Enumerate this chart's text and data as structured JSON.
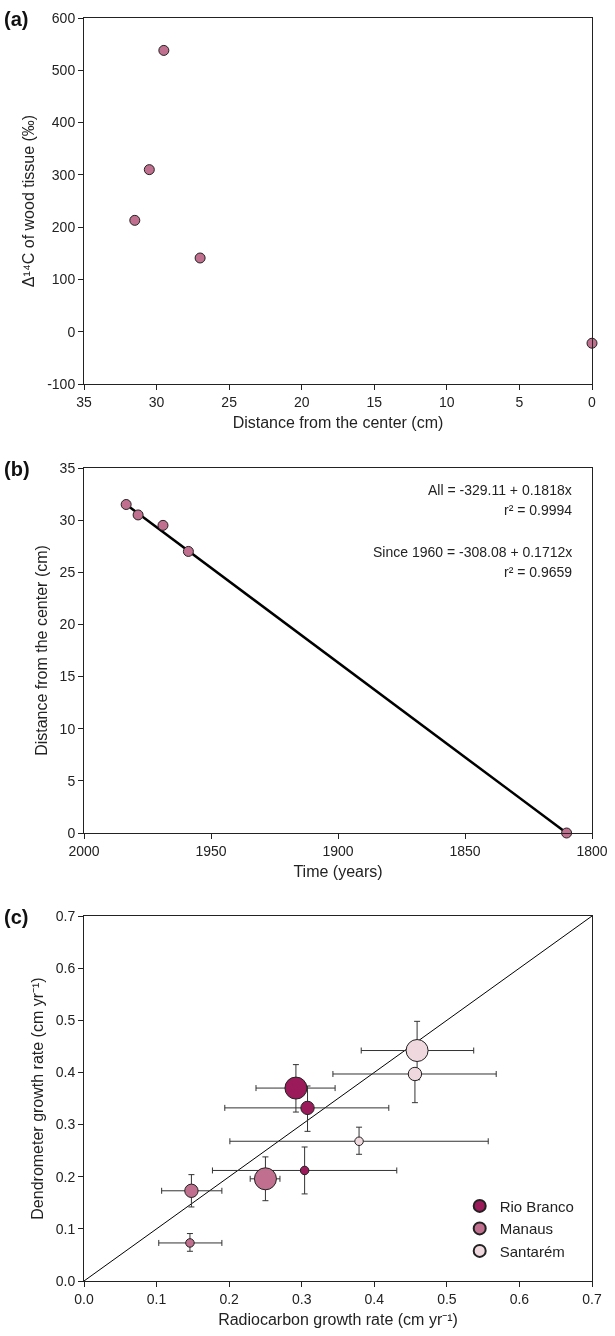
{
  "chart_data": [
    {
      "type": "scatter",
      "title": "(a)",
      "xlabel": "Distance from the center (cm)",
      "ylabel": "Δ¹⁴C of wood tissue (‰)",
      "x": [
        31.5,
        30.5,
        29.5,
        27,
        0
      ],
      "series": [
        {
          "color": "#c0708e",
          "marker": "circle",
          "values": [
            213,
            310,
            538,
            141,
            -22
          ]
        }
      ],
      "xlim": [
        35,
        0
      ],
      "xticks": [
        35,
        30,
        25,
        20,
        15,
        10,
        5,
        0
      ],
      "ylim": [
        -100,
        600
      ],
      "yticks": [
        -100,
        0,
        100,
        200,
        300,
        400,
        500,
        600
      ],
      "legend": false
    },
    {
      "type": "scatter",
      "title": "(b)",
      "xlabel": "Time (years)",
      "ylabel": "Distance from the center (cm)",
      "x": [
        1983.4,
        1978.7,
        1968.9,
        1958.9,
        1810
      ],
      "series": [
        {
          "type": "line",
          "color": "#000000",
          "marker": "none",
          "x": [
            1983.4,
            1810
          ],
          "values": [
            31.5,
            0
          ],
          "line_style": "solid"
        },
        {
          "color": "#c0708e",
          "marker": "circle",
          "values": [
            31.5,
            30.5,
            29.5,
            27,
            0
          ]
        }
      ],
      "annotations": [
        "All = -329.11 + 0.1818x",
        "r² = 0.9994",
        "Since 1960 = -308.08 + 0.1712x",
        "r² = 0.9659"
      ],
      "xlim": [
        2000,
        1800
      ],
      "xticks": [
        2000,
        1950,
        1900,
        1850,
        1800
      ],
      "ylim": [
        0,
        35
      ],
      "yticks": [
        0,
        5,
        10,
        15,
        20,
        25,
        30,
        35
      ],
      "legend": false
    },
    {
      "type": "bubble",
      "title": "(c)",
      "xlabel": "Radiocarbon growth rate (cm yr⁻¹)",
      "ylabel": "Dendrometer growth rate (cm yr⁻¹)",
      "marker": "circle",
      "series": [
        {
          "type": "line",
          "color": "#000000",
          "marker": "none",
          "x": [
            0,
            0.7
          ],
          "values": [
            0,
            0.7
          ],
          "line_style": "solid"
        },
        {
          "name": "Rio Branco",
          "color": "#9b1b5a",
          "x": [
            0.292,
            0.308,
            0.304
          ],
          "values": [
            0.37,
            0.332,
            0.212
          ],
          "sizes": [
            1,
            0.37,
            0.15
          ],
          "xerrors": [
            [
              0.237,
              0.346
            ],
            [
              0.194,
              0.42
            ],
            [
              0.177,
              0.431
            ]
          ],
          "errors": [
            [
              0.324,
              0.415
            ],
            [
              0.287,
              0.374
            ],
            [
              0.167,
              0.257
            ]
          ]
        },
        {
          "name": "Manaus",
          "color": "#c0708e",
          "x": [
            0.148,
            0.146,
            0.25
          ],
          "values": [
            0.173,
            0.073,
            0.196
          ],
          "sizes": [
            0.37,
            0.15,
            1
          ],
          "xerrors": [
            [
              0.107,
              0.19
            ],
            [
              0.103,
              0.19
            ],
            [
              0.229,
              0.27
            ]
          ],
          "errors": [
            [
              0.142,
              0.204
            ],
            [
              0.057,
              0.091
            ],
            [
              0.154,
              0.238
            ]
          ]
        },
        {
          "name": "Santarém",
          "color": "#efd9df",
          "x": [
            0.459,
            0.456,
            0.379
          ],
          "values": [
            0.442,
            0.397,
            0.268
          ],
          "sizes": [
            1,
            0.37,
            0.15
          ],
          "xerrors": [
            [
              0.382,
              0.537
            ],
            [
              0.343,
              0.568
            ],
            [
              0.201,
              0.557
            ]
          ],
          "errors": [
            [
              0.386,
              0.498
            ],
            [
              0.342,
              0.397
            ],
            [
              0.243,
              0.295
            ]
          ]
        }
      ],
      "xlim": [
        0,
        0.7
      ],
      "xticks": [
        {
          "value": 0,
          "label": "0.0"
        },
        0.1,
        0.2,
        0.3,
        0.4,
        0.5,
        0.6,
        0.7
      ],
      "ylim": [
        0,
        0.7
      ],
      "yticks": [
        {
          "value": 0,
          "label": "0.0"
        },
        0.1,
        0.2,
        0.3,
        0.4,
        0.5,
        0.6,
        0.7
      ],
      "legend": "bottom right"
    }
  ]
}
